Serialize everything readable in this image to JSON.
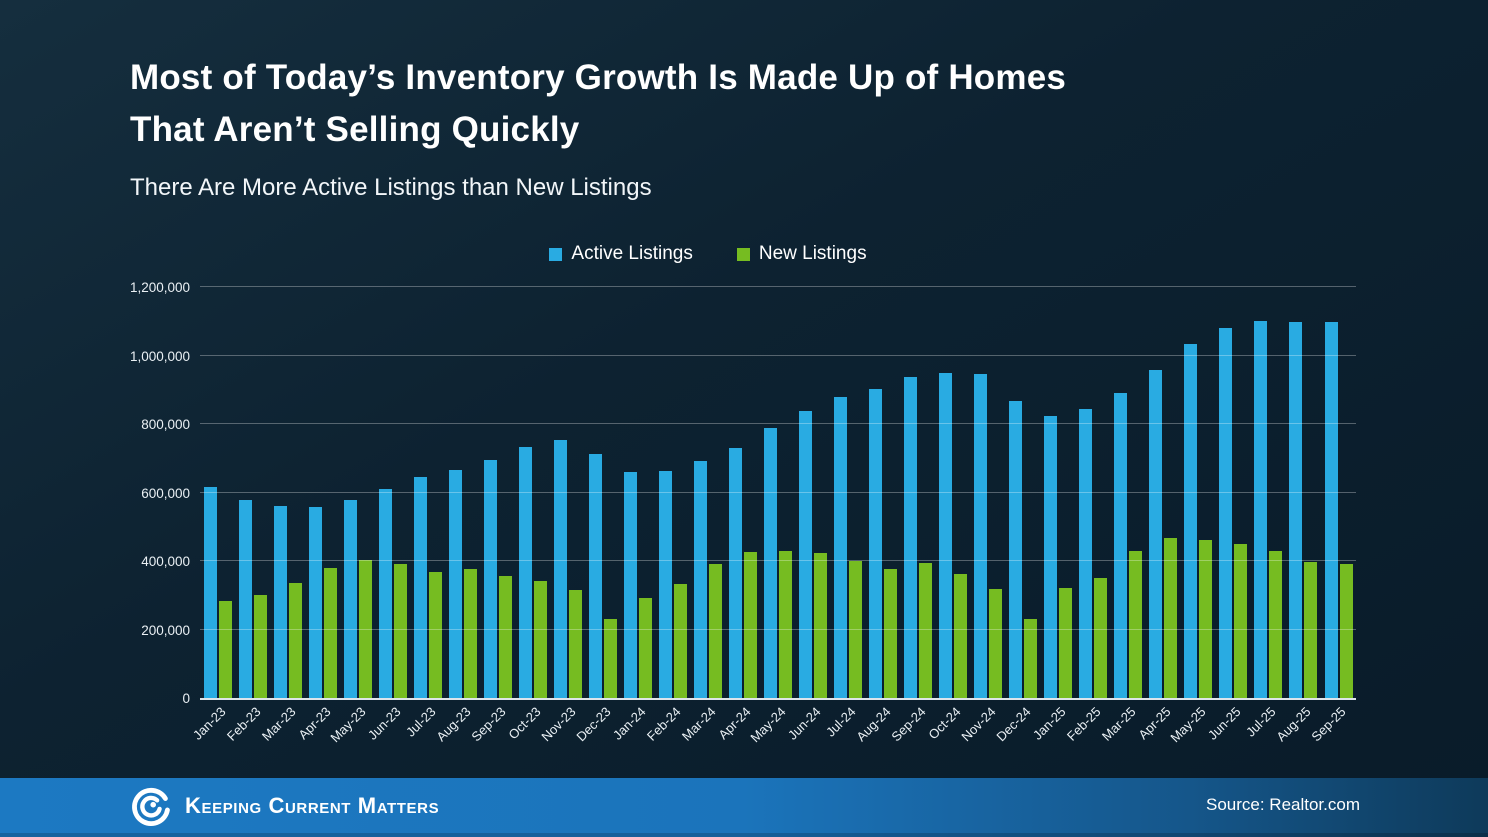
{
  "header": {
    "title_line1": "Most of Today’s Inventory Growth Is Made Up of Homes",
    "title_line2": "That Aren’t Selling Quickly",
    "subtitle": "There Are More Active Listings than New Listings"
  },
  "colors": {
    "active_listings": "#29ABE2",
    "new_listings": "#76BC21",
    "footer_bar": "#1B74BB",
    "background": "#0D2231"
  },
  "chart_data": {
    "type": "bar",
    "title": "Most of Today’s Inventory Growth Is Made Up of Homes That Aren’t Selling Quickly",
    "subtitle": "There Are More Active Listings than New Listings",
    "xlabel": "",
    "ylabel": "",
    "ylim": [
      0,
      1200000
    ],
    "grid": true,
    "legend_position": "top",
    "yticks": [
      0,
      200000,
      400000,
      600000,
      800000,
      1000000,
      1200000
    ],
    "ytick_labels": [
      "0",
      "200,000",
      "400,000",
      "600,000",
      "800,000",
      "1,000,000",
      "1,200,000"
    ],
    "categories": [
      "Jan-23",
      "Feb-23",
      "Mar-23",
      "Apr-23",
      "May-23",
      "Jun-23",
      "Jul-23",
      "Aug-23",
      "Sep-23",
      "Oct-23",
      "Nov-23",
      "Dec-23",
      "Jan-24",
      "Feb-24",
      "Mar-24",
      "Apr-24",
      "May-24",
      "Jun-24",
      "Jul-24",
      "Aug-24",
      "Sep-24",
      "Oct-24",
      "Nov-24",
      "Dec-24",
      "Jan-25",
      "Feb-25",
      "Mar-25",
      "Apr-25",
      "May-25",
      "Jun-25",
      "Jul-25",
      "Aug-25",
      "Sep-25"
    ],
    "series": [
      {
        "name": "Active Listings",
        "color": "#29ABE2",
        "values": [
          615000,
          578000,
          560000,
          558000,
          578000,
          611000,
          644000,
          666000,
          694000,
          734000,
          752000,
          712000,
          660000,
          662000,
          691000,
          729000,
          787000,
          838000,
          878000,
          903000,
          936000,
          950000,
          945000,
          866000,
          824000,
          845000,
          890000,
          958000,
          1033000,
          1080000,
          1100000,
          1097000,
          1099000
        ]
      },
      {
        "name": "New Listings",
        "color": "#76BC21",
        "values": [
          283000,
          300000,
          337000,
          381000,
          403000,
          392000,
          368000,
          378000,
          356000,
          343000,
          314000,
          232000,
          292000,
          332000,
          390000,
          426000,
          430000,
          422000,
          400000,
          377000,
          394000,
          361000,
          317000,
          232000,
          321000,
          351000,
          430000,
          468000,
          460000,
          450000,
          430000,
          397000,
          392000
        ]
      }
    ]
  },
  "footer": {
    "brand": "Keeping Current Matters",
    "source": "Source: Realtor.com"
  }
}
